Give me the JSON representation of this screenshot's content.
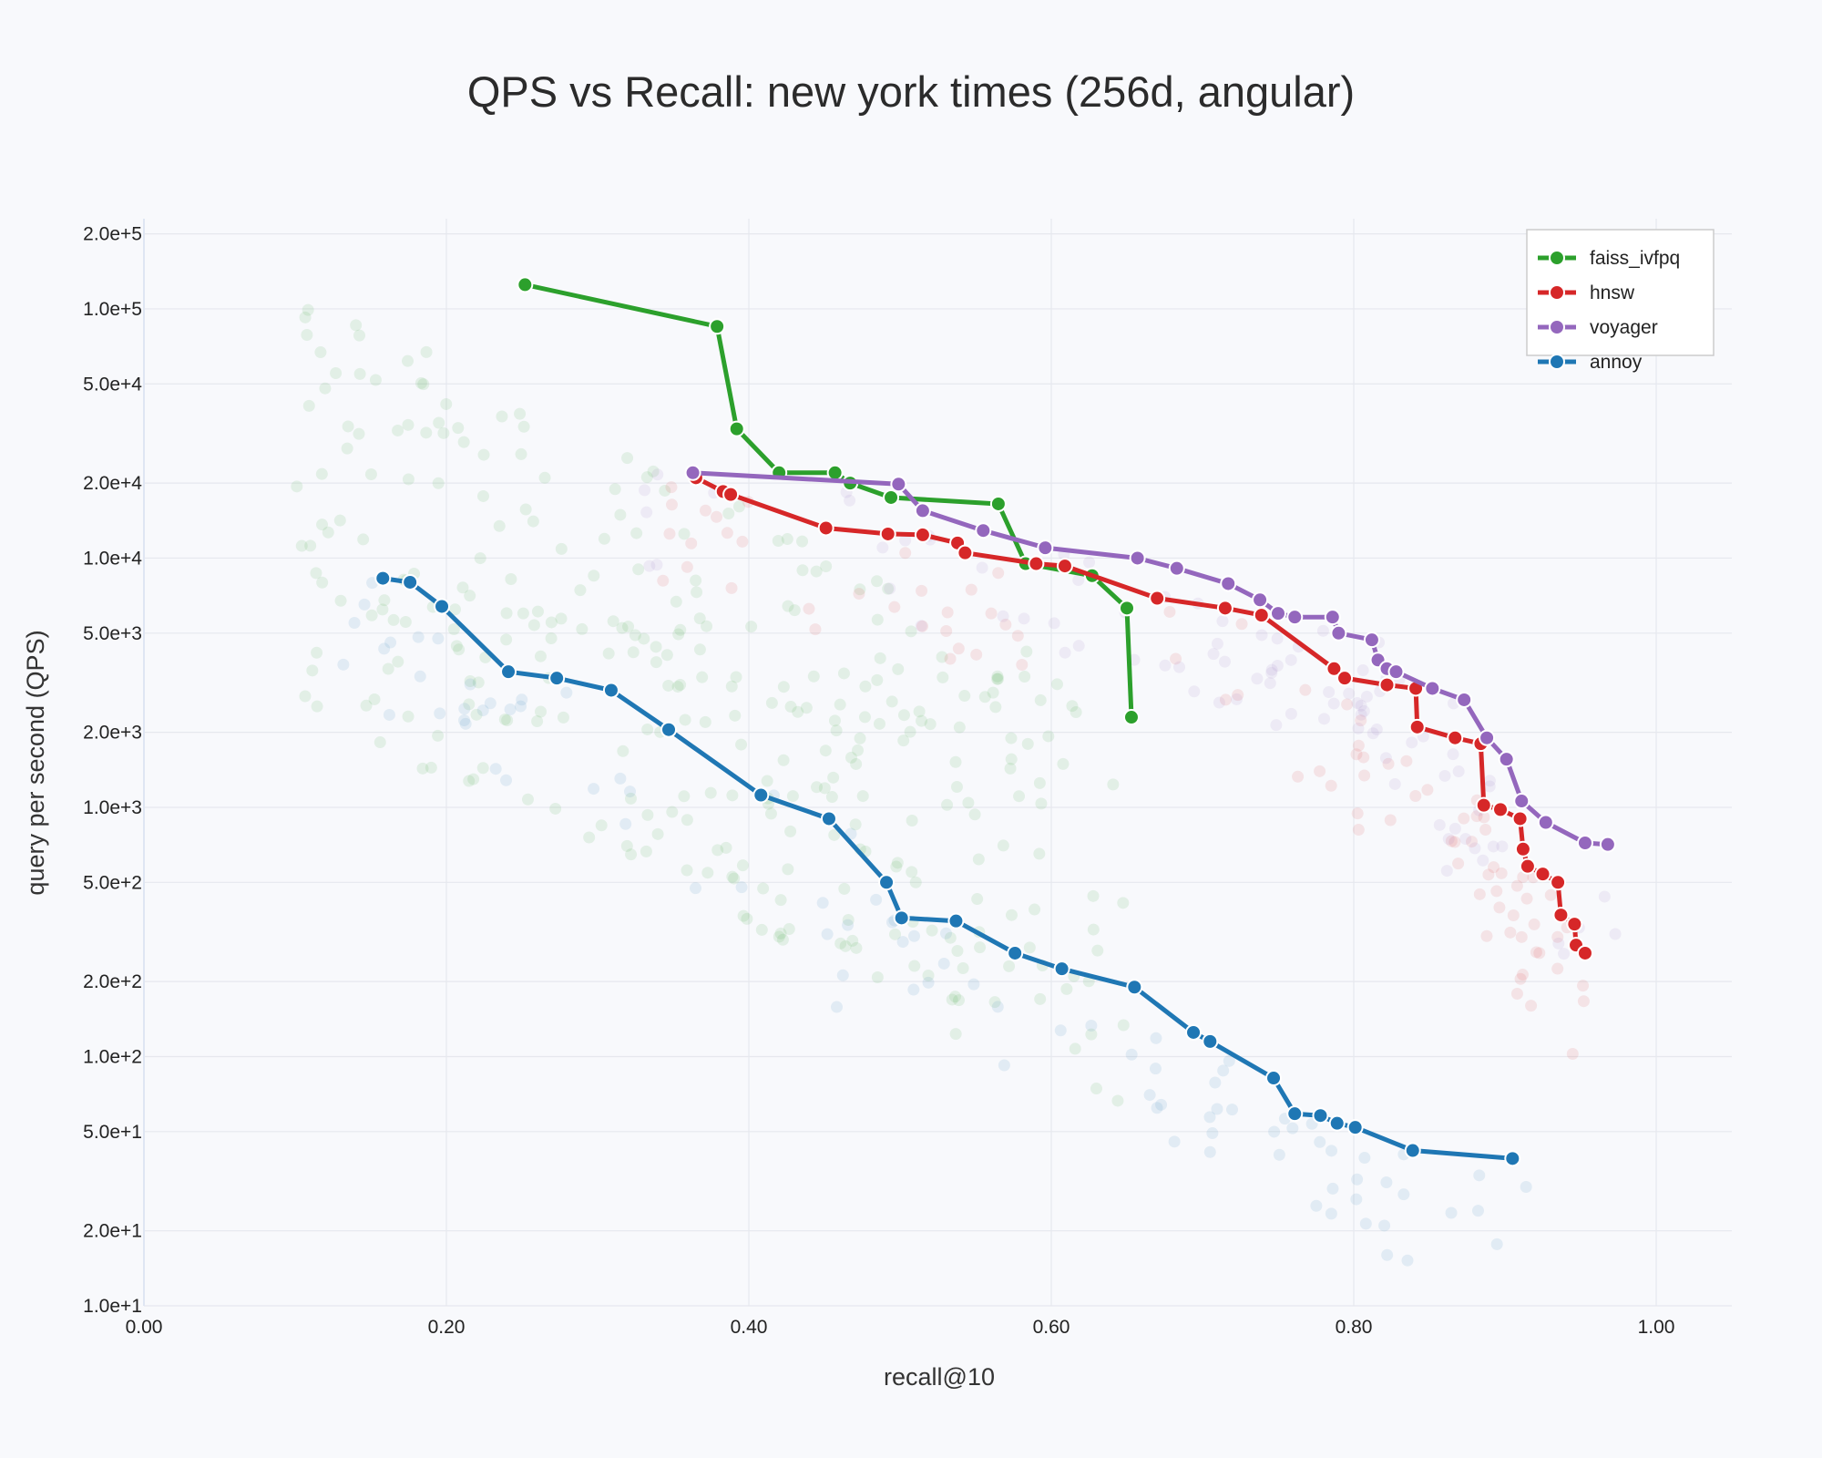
{
  "colors": {
    "faiss_ivfpq": "#2ca02c",
    "hnsw": "#d62728",
    "voyager": "#9467bd",
    "annoy": "#1f77b4",
    "background": "#f8f9fc"
  },
  "chart_data": {
    "type": "line",
    "title": "QPS vs Recall: new york times (256d, angular)",
    "xlabel": "recall@10",
    "ylabel": "query per second (QPS)",
    "x_scale": "linear",
    "y_scale": "log",
    "xlim": [
      0,
      1.05
    ],
    "ylim": [
      10,
      230000
    ],
    "x_ticks": [
      0,
      0.2,
      0.4,
      0.6,
      0.8,
      1.0
    ],
    "x_tick_labels": [
      "0.00",
      "0.20",
      "0.40",
      "0.60",
      "0.80",
      "1.00"
    ],
    "y_ticks": [
      10,
      20,
      50,
      100,
      200,
      500,
      1000,
      2000,
      5000,
      10000,
      20000,
      50000,
      100000,
      200000
    ],
    "y_tick_labels": [
      "1.0e+1",
      "2.0e+1",
      "5.0e+1",
      "1.0e+2",
      "2.0e+2",
      "5.0e+2",
      "1.0e+3",
      "2.0e+3",
      "5.0e+3",
      "1.0e+4",
      "2.0e+4",
      "5.0e+4",
      "1.0e+5",
      "2.0e+5"
    ],
    "grid": true,
    "legend_position": "top-right",
    "series": [
      {
        "name": "faiss_ivfpq",
        "color": "#2ca02c",
        "x": [
          0.252,
          0.379,
          0.392,
          0.42,
          0.457,
          0.467,
          0.494,
          0.565,
          0.583,
          0.627,
          0.65,
          0.653
        ],
        "y": [
          125000,
          85000,
          33000,
          22000,
          22000,
          20000,
          17500,
          16500,
          9500,
          8500,
          6300,
          2300
        ]
      },
      {
        "name": "hnsw",
        "color": "#d62728",
        "x": [
          0.365,
          0.383,
          0.388,
          0.451,
          0.492,
          0.515,
          0.538,
          0.543,
          0.59,
          0.609,
          0.67,
          0.715,
          0.739,
          0.787,
          0.794,
          0.822,
          0.841,
          0.842,
          0.867,
          0.884,
          0.886,
          0.897,
          0.91,
          0.912,
          0.915,
          0.925,
          0.935,
          0.937,
          0.946,
          0.947,
          0.953
        ],
        "y": [
          21000,
          18500,
          18000,
          13200,
          12500,
          12400,
          11500,
          10500,
          9500,
          9300,
          6900,
          6300,
          5900,
          3600,
          3300,
          3100,
          3000,
          2100,
          1900,
          1800,
          1020,
          980,
          900,
          680,
          580,
          540,
          500,
          370,
          340,
          280,
          260
        ]
      },
      {
        "name": "voyager",
        "color": "#9467bd",
        "x": [
          0.363,
          0.499,
          0.515,
          0.555,
          0.596,
          0.657,
          0.683,
          0.717,
          0.738,
          0.75,
          0.761,
          0.786,
          0.79,
          0.812,
          0.816,
          0.822,
          0.828,
          0.852,
          0.873,
          0.888,
          0.901,
          0.911,
          0.927,
          0.953,
          0.968
        ],
        "y": [
          22000,
          19800,
          15500,
          12900,
          11000,
          10000,
          9100,
          7900,
          6800,
          6000,
          5800,
          5800,
          5000,
          4700,
          3900,
          3600,
          3500,
          3000,
          2700,
          1900,
          1560,
          1060,
          870,
          720,
          710
        ]
      },
      {
        "name": "annoy",
        "color": "#1f77b4",
        "x": [
          0.158,
          0.176,
          0.197,
          0.241,
          0.273,
          0.309,
          0.347,
          0.408,
          0.453,
          0.491,
          0.501,
          0.537,
          0.576,
          0.607,
          0.655,
          0.694,
          0.705,
          0.747,
          0.761,
          0.778,
          0.789,
          0.801,
          0.839,
          0.905
        ],
        "y": [
          8300,
          8000,
          6400,
          3500,
          3300,
          2950,
          2050,
          1120,
          900,
          500,
          360,
          350,
          260,
          225,
          190,
          125,
          115,
          82,
          59,
          58,
          54,
          52,
          42,
          39
        ]
      }
    ]
  }
}
